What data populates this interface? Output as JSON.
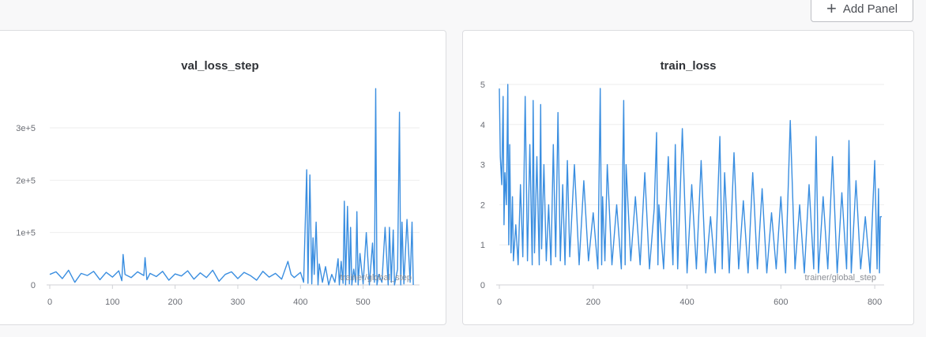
{
  "toolbar": {
    "add_panel_label": "Add Panel",
    "add_icon": "plus-icon"
  },
  "colors": {
    "series": "#3a8ee0",
    "grid": "#eeeeee",
    "axis": "#d0d2d6"
  },
  "chart_data": [
    {
      "type": "line",
      "title": "val_loss_step",
      "xlabel": "trainer/global_step",
      "ylabel": "",
      "xlim": [
        0,
        590
      ],
      "ylim": [
        0,
        380000
      ],
      "xticks": [
        0,
        100,
        200,
        300,
        400,
        500
      ],
      "xtick_labels": [
        "0",
        "100",
        "200",
        "300",
        "400",
        "500"
      ],
      "yticks": [
        0,
        100000,
        200000,
        300000
      ],
      "ytick_labels": [
        "0",
        "1e+5",
        "2e+5",
        "3e+5"
      ],
      "grid": true,
      "series": [
        {
          "x": [
            0,
            10,
            20,
            30,
            40,
            50,
            60,
            70,
            80,
            90,
            100,
            110,
            115,
            117,
            120,
            130,
            140,
            150,
            152,
            155,
            160,
            170,
            180,
            190,
            200,
            210,
            220,
            230,
            240,
            250,
            260,
            270,
            280,
            290,
            300,
            310,
            320,
            330,
            340,
            350,
            360,
            370,
            380,
            385,
            390,
            400,
            405,
            410,
            412,
            415,
            418,
            420,
            422,
            425,
            428,
            430,
            435,
            440,
            445,
            450,
            455,
            460,
            462,
            465,
            468,
            470,
            472,
            475,
            478,
            480,
            482,
            485,
            488,
            490,
            492,
            495,
            500,
            505,
            510,
            515,
            518,
            520,
            522,
            525,
            530,
            535,
            540,
            542,
            545,
            548,
            550,
            555,
            558,
            560,
            562,
            565,
            570,
            575,
            578,
            580
          ],
          "y": [
            20000,
            25000,
            12000,
            28000,
            5000,
            22000,
            18000,
            26000,
            10000,
            24000,
            15000,
            27000,
            8000,
            58000,
            20000,
            14000,
            25000,
            18000,
            52000,
            10000,
            22000,
            16000,
            26000,
            9000,
            21000,
            17000,
            27000,
            11000,
            23000,
            14000,
            28000,
            7000,
            20000,
            25000,
            12000,
            24000,
            18000,
            9000,
            26000,
            15000,
            22000,
            11000,
            45000,
            20000,
            14000,
            24000,
            5000,
            220000,
            3000,
            210000,
            2000,
            90000,
            20000,
            120000,
            0,
            40000,
            5000,
            35000,
            0,
            20000,
            5000,
            50000,
            0,
            45000,
            3000,
            160000,
            0,
            150000,
            2000,
            110000,
            0,
            30000,
            5000,
            140000,
            0,
            60000,
            2000,
            100000,
            0,
            80000,
            5000,
            375000,
            0,
            20000,
            5000,
            110000,
            0,
            110000,
            5000,
            105000,
            0,
            30000,
            330000,
            0,
            120000,
            2000,
            125000,
            5000,
            120000,
            0
          ]
        }
      ]
    },
    {
      "type": "line",
      "title": "train_loss",
      "xlabel": "trainer/global_step",
      "ylabel": "",
      "xlim": [
        0,
        820
      ],
      "ylim": [
        0,
        5
      ],
      "xticks": [
        0,
        200,
        400,
        600,
        800
      ],
      "xtick_labels": [
        "0",
        "200",
        "400",
        "600",
        "800"
      ],
      "yticks": [
        0,
        1,
        2,
        3,
        4,
        5
      ],
      "ytick_labels": [
        "0",
        "1",
        "2",
        "3",
        "4",
        "5"
      ],
      "grid": true,
      "series": [
        {
          "x": [
            0,
            2,
            5,
            8,
            10,
            12,
            15,
            18,
            20,
            22,
            25,
            28,
            30,
            35,
            40,
            45,
            50,
            55,
            60,
            65,
            70,
            72,
            75,
            80,
            85,
            88,
            90,
            95,
            100,
            105,
            110,
            115,
            120,
            125,
            130,
            135,
            140,
            145,
            150,
            160,
            170,
            180,
            190,
            200,
            210,
            215,
            218,
            220,
            225,
            230,
            240,
            250,
            260,
            265,
            268,
            270,
            280,
            290,
            300,
            310,
            320,
            330,
            335,
            338,
            340,
            350,
            360,
            370,
            375,
            380,
            390,
            400,
            410,
            420,
            430,
            440,
            450,
            460,
            470,
            475,
            480,
            490,
            500,
            510,
            520,
            530,
            540,
            550,
            560,
            570,
            580,
            590,
            600,
            610,
            620,
            630,
            640,
            650,
            660,
            670,
            675,
            680,
            690,
            700,
            710,
            720,
            730,
            740,
            745,
            750,
            760,
            770,
            780,
            790,
            800,
            805,
            808,
            810,
            812,
            815
          ],
          "y": [
            4.9,
            3.2,
            2.5,
            4.7,
            1.5,
            2.8,
            2.0,
            5.0,
            1.0,
            3.5,
            0.8,
            2.2,
            0.6,
            1.5,
            0.5,
            2.5,
            0.7,
            4.7,
            0.6,
            3.5,
            0.5,
            4.6,
            0.8,
            3.2,
            0.5,
            4.5,
            0.9,
            3.0,
            0.6,
            2.0,
            0.5,
            3.5,
            0.7,
            4.3,
            0.6,
            2.5,
            0.5,
            3.1,
            0.7,
            3.0,
            0.5,
            2.6,
            0.6,
            1.8,
            0.4,
            4.9,
            0.5,
            2.2,
            0.6,
            3.0,
            0.5,
            2.0,
            0.4,
            4.6,
            0.5,
            3.0,
            0.6,
            2.2,
            0.5,
            2.8,
            0.4,
            1.9,
            3.8,
            0.5,
            2.0,
            0.4,
            3.2,
            0.5,
            3.5,
            0.4,
            3.9,
            0.3,
            2.5,
            0.4,
            3.1,
            0.3,
            1.7,
            0.3,
            3.7,
            0.4,
            2.8,
            0.3,
            3.3,
            0.4,
            2.1,
            0.3,
            2.8,
            0.4,
            2.4,
            0.3,
            1.8,
            0.4,
            2.2,
            0.3,
            4.1,
            0.4,
            2.0,
            0.3,
            2.5,
            0.4,
            3.7,
            0.3,
            2.2,
            0.4,
            3.2,
            0.3,
            2.3,
            0.4,
            3.6,
            0.3,
            2.6,
            0.4,
            1.7,
            0.3,
            3.1,
            0.4,
            2.4,
            0.3,
            1.7,
            1.7
          ]
        }
      ]
    }
  ]
}
